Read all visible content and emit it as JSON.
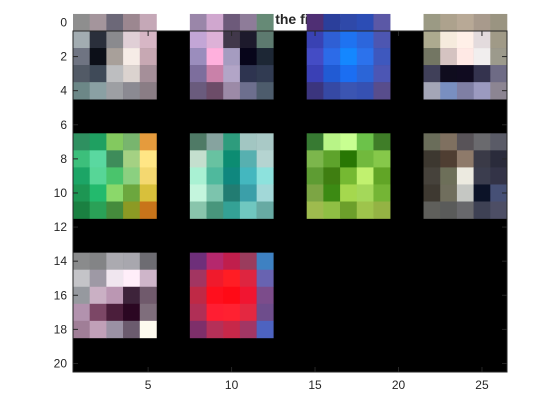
{
  "chart_data": {
    "type": "heatmap",
    "title": "filters in the first layer",
    "xlabel": "",
    "ylabel": "",
    "xlim": [
      0.5,
      26.5
    ],
    "ylim": [
      0.5,
      20.5
    ],
    "y_reversed": true,
    "grid": false,
    "xticks": [
      5,
      10,
      15,
      20,
      25
    ],
    "yticks": [
      0,
      2,
      4,
      6,
      8,
      10,
      12,
      14,
      16,
      18,
      20
    ],
    "background_color": "#000000",
    "tile_size": 5,
    "filters": [
      {
        "col": 1,
        "row": 1,
        "pixels": [
          [
            "#8e8e8e",
            "#a4959c",
            "#6c6878",
            "#9c8790",
            "#c5a8b7"
          ],
          [
            "#a2acb1",
            "#2a2f3b",
            "#8a8a8e",
            "#e0cfd6",
            "#d7b6c5"
          ],
          [
            "#6f7482",
            "#0c0f18",
            "#a8a09a",
            "#f6ece6",
            "#c7a8b3"
          ],
          [
            "#525a66",
            "#3f4a58",
            "#bdbec0",
            "#dbd3cf",
            "#a58f99"
          ],
          [
            "#6c8787",
            "#8aa0a3",
            "#9d9fa3",
            "#8b8a92",
            "#8a7d85"
          ]
        ]
      },
      {
        "col": 2,
        "row": 1,
        "pixels": [
          [
            "#9a86a9",
            "#d0a7cf",
            "#6d5a7a",
            "#8e7c99",
            "#668a76"
          ],
          [
            "#c3a6d6",
            "#ddb1d7",
            "#41384a",
            "#1d1a2c",
            "#5d7a6f"
          ],
          [
            "#9b8dbd",
            "#ffb0dd",
            "#a59cc0",
            "#07051a",
            "#1d2735"
          ],
          [
            "#7d6e9d",
            "#c981a9",
            "#b2a5c7",
            "#2e3450",
            "#313b52"
          ],
          [
            "#6a5b7d",
            "#6c4c68",
            "#9c8aa7",
            "#6d6f8e",
            "#4d5c6c"
          ]
        ]
      },
      {
        "col": 3,
        "row": 1,
        "pixels": [
          [
            "#4f2f74",
            "#2b3f9b",
            "#2f49a9",
            "#2c4db5",
            "#5b58a6"
          ],
          [
            "#3942b3",
            "#2f5fd4",
            "#1e73f1",
            "#2c66dc",
            "#4d56b1"
          ],
          [
            "#444cc5",
            "#2c6be8",
            "#1487ff",
            "#2c72ec",
            "#3e58be"
          ],
          [
            "#3a40b5",
            "#215bd4",
            "#1b6ef2",
            "#2b65d7",
            "#4c56b4"
          ],
          [
            "#3b357e",
            "#3649a4",
            "#3b55b2",
            "#3651b2",
            "#584d8c"
          ]
        ]
      },
      {
        "col": 4,
        "row": 1,
        "pixels": [
          [
            "#9b9a84",
            "#ada28d",
            "#b8a996",
            "#a89a8c",
            "#9a9481"
          ],
          [
            "#adaa8f",
            "#f6ebdd",
            "#fff0e8",
            "#e3dbdd",
            "#a09a87"
          ],
          [
            "#737663",
            "#d5c3c1",
            "#ffe9e5",
            "#f1eeee",
            "#9c9a8c"
          ],
          [
            "#404059",
            "#0f0c1e",
            "#100b20",
            "#34334e",
            "#6e6b85"
          ],
          [
            "#a4a6b7",
            "#798fc0",
            "#7f7fa4",
            "#9b9ac0",
            "#8c8592"
          ]
        ]
      },
      {
        "col": 1,
        "row": 2,
        "pixels": [
          [
            "#2e9060",
            "#1fa061",
            "#83c95f",
            "#78b56e",
            "#e59b3d"
          ],
          [
            "#3cbf7b",
            "#5ad8a0",
            "#3e8c5a",
            "#a4d183",
            "#ffe685"
          ],
          [
            "#1ca566",
            "#57d697",
            "#4ac46c",
            "#8bd080",
            "#f4d870"
          ],
          [
            "#1d9653",
            "#23ba6d",
            "#8bd86a",
            "#6ca73e",
            "#d8c03b"
          ],
          [
            "#1a8041",
            "#2aa157",
            "#458b3c",
            "#8c9a24",
            "#c8741a"
          ]
        ]
      },
      {
        "col": 2,
        "row": 2,
        "pixels": [
          [
            "#4f7a66",
            "#86a39f",
            "#2e9c7d",
            "#a2c6c2",
            "#a9c9c6"
          ],
          [
            "#c4dfce",
            "#68c2a1",
            "#0c8c72",
            "#57b0b0",
            "#b5d4d1"
          ],
          [
            "#a9f1d3",
            "#4fb99d",
            "#0f877e",
            "#44b7bf",
            "#8de2dd"
          ],
          [
            "#c4f5dd",
            "#7cc4ad",
            "#227c72",
            "#3b9fa9",
            "#a2d8d8"
          ],
          [
            "#89c5ac",
            "#48967c",
            "#34a195",
            "#70c7c0",
            "#67aaa3"
          ]
        ]
      },
      {
        "col": 3,
        "row": 2,
        "pixels": [
          [
            "#377a32",
            "#b8f487",
            "#c8ff91",
            "#6cc24a",
            "#3f7d28"
          ],
          [
            "#7cb64c",
            "#5ea32c",
            "#287704",
            "#71b93d",
            "#86c84a"
          ],
          [
            "#5e9c33",
            "#3f7e11",
            "#75b932",
            "#c1f16f",
            "#61a526"
          ],
          [
            "#7ca544",
            "#3c8a13",
            "#a5d84e",
            "#a4d85a",
            "#74b535"
          ],
          [
            "#9ebb4e",
            "#8fbf44",
            "#6c9f2b",
            "#9ec44c",
            "#94b344"
          ]
        ]
      },
      {
        "col": 4,
        "row": 2,
        "pixels": [
          [
            "#6a6d5a",
            "#7f7060",
            "#585358",
            "#6a6a6e",
            "#5a5b67"
          ],
          [
            "#3d3830",
            "#4f3e32",
            "#8e7a6a",
            "#3a3a47",
            "#2a2b3b"
          ],
          [
            "#46423b",
            "#6d6f59",
            "#eceae0",
            "#3b3d4e",
            "#333347"
          ],
          [
            "#3e3931",
            "#706e5d",
            "#c5c7c3",
            "#0c1328",
            "#465076"
          ],
          [
            "#5f5f5b",
            "#5a5b5a",
            "#68686c",
            "#3e4154",
            "#4d4e65"
          ]
        ]
      },
      {
        "col": 1,
        "row": 3,
        "pixels": [
          [
            "#8a8b8c",
            "#838486",
            "#abaab0",
            "#a8a7ae",
            "#6d6c72"
          ],
          [
            "#c4c4c8",
            "#9e99a5",
            "#f0e6ef",
            "#ffeef9",
            "#ceb5c9"
          ],
          [
            "#96999f",
            "#cab0c4",
            "#bb97b3",
            "#3d233a",
            "#705a6c"
          ],
          [
            "#b292ae",
            "#7c4766",
            "#4b1e3b",
            "#2b0722",
            "#7f6e7c"
          ],
          [
            "#a07e97",
            "#c0a0b8",
            "#9a91a4",
            "#6b5b6e",
            "#fdfaee"
          ]
        ]
      },
      {
        "col": 2,
        "row": 3,
        "pixels": [
          [
            "#6e2f7a",
            "#b5286d",
            "#c01e4c",
            "#9a3c5d",
            "#3e81c2"
          ],
          [
            "#a23561",
            "#f01a2c",
            "#ff1d24",
            "#de2540",
            "#6863b1"
          ],
          [
            "#bf2946",
            "#ff0f1d",
            "#ff0a16",
            "#f11531",
            "#7c4c8b"
          ],
          [
            "#b02f56",
            "#ff1e32",
            "#ff2131",
            "#e42841",
            "#6e4d8c"
          ],
          [
            "#7e2f6a",
            "#b53058",
            "#c72849",
            "#a23664",
            "#4d63c0"
          ]
        ]
      }
    ]
  }
}
